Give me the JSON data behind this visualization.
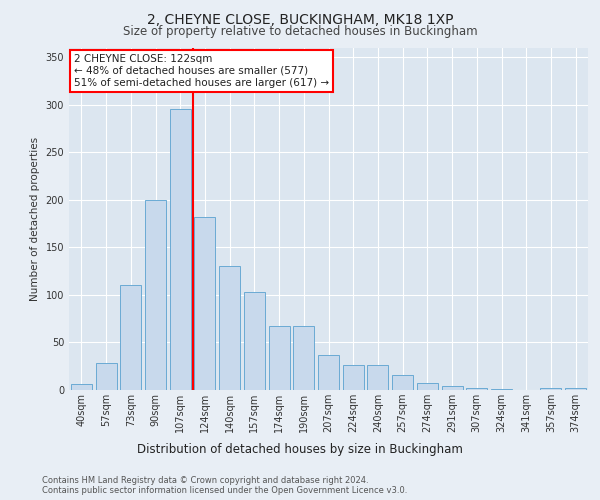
{
  "title1": "2, CHEYNE CLOSE, BUCKINGHAM, MK18 1XP",
  "title2": "Size of property relative to detached houses in Buckingham",
  "xlabel": "Distribution of detached houses by size in Buckingham",
  "ylabel": "Number of detached properties",
  "categories": [
    "40sqm",
    "57sqm",
    "73sqm",
    "90sqm",
    "107sqm",
    "124sqm",
    "140sqm",
    "157sqm",
    "174sqm",
    "190sqm",
    "207sqm",
    "224sqm",
    "240sqm",
    "257sqm",
    "274sqm",
    "291sqm",
    "307sqm",
    "324sqm",
    "341sqm",
    "357sqm",
    "374sqm"
  ],
  "values": [
    6,
    28,
    110,
    200,
    295,
    182,
    130,
    103,
    67,
    67,
    37,
    26,
    26,
    16,
    7,
    4,
    2,
    1,
    0,
    2,
    2
  ],
  "bar_color": "#c8d9ec",
  "bar_edge_color": "#6aaad4",
  "vline_color": "red",
  "annotation_text": "2 CHEYNE CLOSE: 122sqm\n← 48% of detached houses are smaller (577)\n51% of semi-detached houses are larger (617) →",
  "annotation_box_color": "white",
  "annotation_box_edge_color": "red",
  "footer1": "Contains HM Land Registry data © Crown copyright and database right 2024.",
  "footer2": "Contains public sector information licensed under the Open Government Licence v3.0.",
  "ylim": [
    0,
    360
  ],
  "background_color": "#e8eef5",
  "plot_background": "#dce6f0",
  "grid_color": "#ffffff",
  "title1_fontsize": 10,
  "title2_fontsize": 8.5,
  "ylabel_fontsize": 7.5,
  "xlabel_fontsize": 8.5,
  "tick_fontsize": 7,
  "footer_fontsize": 6.0,
  "ann_fontsize": 7.5
}
